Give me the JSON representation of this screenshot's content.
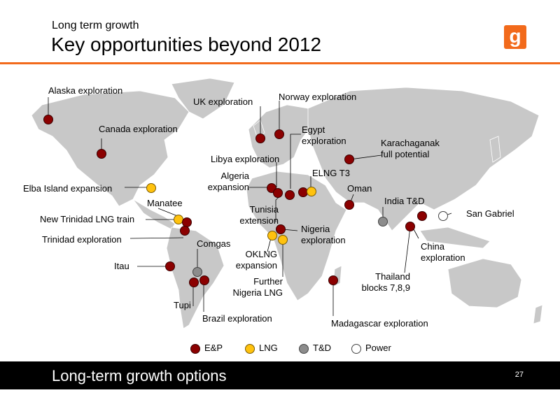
{
  "header": {
    "subtitle": "Long term growth",
    "title": "Key opportunities beyond 2012",
    "logo_letter": "g"
  },
  "labels": {
    "alaska": "Alaska exploration",
    "canada": "Canada exploration",
    "uk": "UK exploration",
    "norway": "Norway exploration",
    "egypt": "Egypt\nexploration",
    "karachaganak": "Karachaganak\nfull potential",
    "libya": "Libya exploration",
    "algeria": "Algeria\nexpansion",
    "elng": "ELNG T3",
    "oman": "Oman",
    "elba": "Elba Island expansion",
    "manatee": "Manatee",
    "india": "India T&D",
    "tunisia": "Tunisia\nextension",
    "san_gabriel": "San Gabriel",
    "new_trinidad": "New Trinidad LNG train",
    "trinidad": "Trinidad exploration",
    "nigeria": "Nigeria\nexploration",
    "comgas": "Comgas",
    "oklng": "OKLNG\nexpansion",
    "china": "China\nexploration",
    "itau": "Itau",
    "further_nigeria": "Further\nNigeria LNG",
    "thailand": "Thailand\nblocks 7,8,9",
    "tupi": "Tupi",
    "brazil": "Brazil exploration",
    "madagascar": "Madagascar exploration"
  },
  "legend": {
    "ep": "E&P",
    "lng": "LNG",
    "td": "T&D",
    "power": "Power"
  },
  "colors": {
    "accent": "#f26a1b",
    "ep": "#8b0000",
    "lng": "#ffc20e",
    "td": "#8c8c8c",
    "power": "#ffffff"
  },
  "footer": {
    "text": "Long-term growth options",
    "page": "27"
  }
}
